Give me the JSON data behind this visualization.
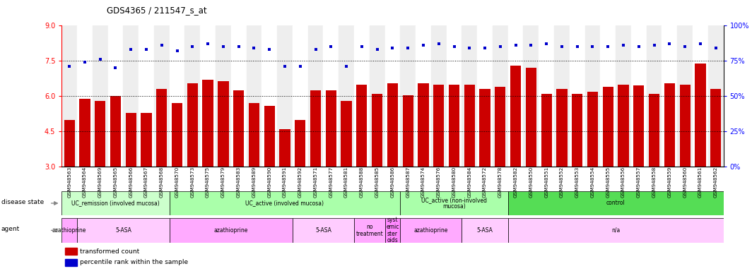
{
  "title": "GDS4365 / 211547_s_at",
  "samples": [
    "GSM948563",
    "GSM948564",
    "GSM948569",
    "GSM948565",
    "GSM948566",
    "GSM948567",
    "GSM948568",
    "GSM948570",
    "GSM948573",
    "GSM948575",
    "GSM948579",
    "GSM948583",
    "GSM948589",
    "GSM948590",
    "GSM948591",
    "GSM948592",
    "GSM948571",
    "GSM948577",
    "GSM948581",
    "GSM948588",
    "GSM948585",
    "GSM948586",
    "GSM948587",
    "GSM948574",
    "GSM948576",
    "GSM948580",
    "GSM948584",
    "GSM948572",
    "GSM948578",
    "GSM948582",
    "GSM948550",
    "GSM948551",
    "GSM948552",
    "GSM948553",
    "GSM948554",
    "GSM948555",
    "GSM948556",
    "GSM948557",
    "GSM948558",
    "GSM948559",
    "GSM948560",
    "GSM948561",
    "GSM948562"
  ],
  "bar_values": [
    5.0,
    5.9,
    5.8,
    6.0,
    5.3,
    5.3,
    6.3,
    5.7,
    6.55,
    6.7,
    6.65,
    6.25,
    5.7,
    5.6,
    4.6,
    5.0,
    6.25,
    6.25,
    5.8,
    6.5,
    6.1,
    6.55,
    6.05,
    6.55,
    6.5,
    6.5,
    6.5,
    6.3,
    6.4,
    7.3,
    7.2,
    6.1,
    6.3,
    6.1,
    6.2,
    6.4,
    6.5,
    6.45,
    6.1,
    6.55,
    6.5,
    7.4,
    6.3
  ],
  "percentile_values": [
    71,
    74,
    76,
    70,
    83,
    83,
    86,
    82,
    85,
    87,
    85,
    85,
    84,
    83,
    71,
    71,
    83,
    85,
    71,
    85,
    83,
    84,
    84,
    86,
    87,
    85,
    84,
    84,
    85,
    86,
    86,
    87,
    85,
    85,
    85,
    85,
    86,
    85,
    86,
    87,
    85,
    87,
    84
  ],
  "ylim_left": [
    3,
    9
  ],
  "ylim_right": [
    0,
    100
  ],
  "yticks_left": [
    3,
    4.5,
    6,
    7.5,
    9
  ],
  "yticks_right": [
    0,
    25,
    50,
    75,
    100
  ],
  "dotted_lines": [
    4.5,
    6.0,
    7.5
  ],
  "bar_color": "#CC0000",
  "dot_color": "#0000CC",
  "bar_bottom": 3,
  "disease_state_groups": [
    {
      "label": "UC_remission (involved mucosa)",
      "start": 0,
      "end": 7,
      "color": "#ccffcc"
    },
    {
      "label": "UC_active (involved mucosa)",
      "start": 7,
      "end": 22,
      "color": "#aaffaa"
    },
    {
      "label": "UC_active (non-involved\nmucosa)",
      "start": 22,
      "end": 29,
      "color": "#aaffaa"
    },
    {
      "label": "control",
      "start": 29,
      "end": 43,
      "color": "#55dd55"
    }
  ],
  "agent_groups": [
    {
      "label": "azathioprine",
      "start": 0,
      "end": 1,
      "color": "#ffaaff"
    },
    {
      "label": "5-ASA",
      "start": 1,
      "end": 7,
      "color": "#ffccff"
    },
    {
      "label": "azathioprine",
      "start": 7,
      "end": 15,
      "color": "#ffaaff"
    },
    {
      "label": "5-ASA",
      "start": 15,
      "end": 19,
      "color": "#ffccff"
    },
    {
      "label": "no\ntreatment",
      "start": 19,
      "end": 21,
      "color": "#ffaaff"
    },
    {
      "label": "syst\nemic\nster\noids",
      "start": 21,
      "end": 22,
      "color": "#ff88ff"
    },
    {
      "label": "azathioprine",
      "start": 22,
      "end": 26,
      "color": "#ffaaff"
    },
    {
      "label": "5-ASA",
      "start": 26,
      "end": 29,
      "color": "#ffccff"
    },
    {
      "label": "n/a",
      "start": 29,
      "end": 43,
      "color": "#ffccff"
    }
  ]
}
